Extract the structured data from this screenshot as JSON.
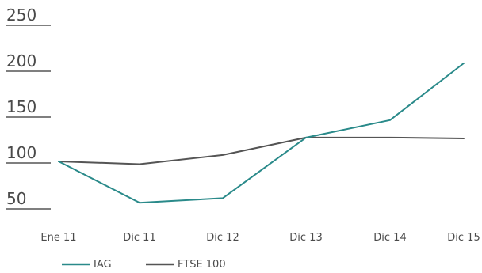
{
  "chart_data": {
    "type": "line",
    "categories": [
      "Ene 11",
      "Dic 11",
      "Dic 12",
      "Dic 13",
      "Dic 14",
      "Dic 15"
    ],
    "yticks": [
      50,
      100,
      150,
      200,
      250
    ],
    "ylim": [
      50,
      250
    ],
    "series": [
      {
        "name": "IAG",
        "color": "#2a8a8a",
        "values": [
          100,
          55,
          60,
          126,
          145,
          207
        ]
      },
      {
        "name": "FTSE 100",
        "color": "#555555",
        "values": [
          100,
          97,
          107,
          126,
          126,
          125
        ]
      }
    ],
    "legend_position": "bottom-left",
    "grid": false
  }
}
